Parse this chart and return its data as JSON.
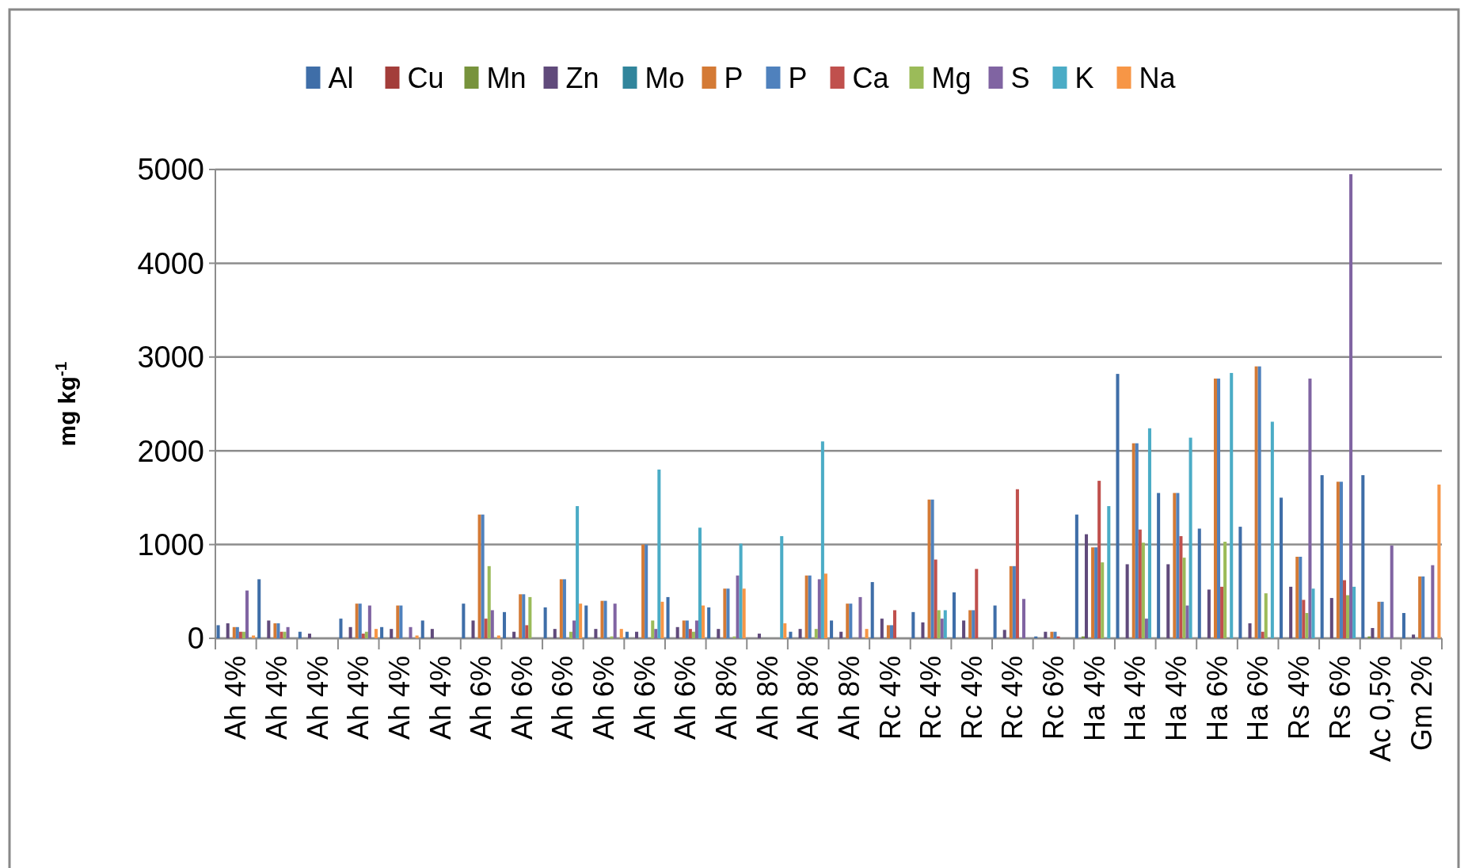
{
  "chart_data": {
    "type": "bar",
    "ylabel": "mg kg$^{-1}$",
    "categories": [
      "Ah 4%",
      "Ah 4%",
      "Ah 4%",
      "Ah 4%",
      "Ah 4%",
      "Ah 4%",
      "Ah 6%",
      "Ah 6%",
      "Ah 6%",
      "Ah 6%",
      "Ah 6%",
      "Ah 6%",
      "Ah 8%",
      "Ah 8%",
      "Ah 8%",
      "Ah 8%",
      "Rc 4%",
      "Rc 4%",
      "Rc 4%",
      "Rc 4%",
      "Rc 6%",
      "Ha 4%",
      "Ha 4%",
      "Ha 4%",
      "Ha 6%",
      "Ha 6%",
      "Rs 4%",
      "Rs 6%",
      "Ac 0,5%",
      "Gm 2%"
    ],
    "series": [
      {
        "name": "Al",
        "color": "#3f6ea8",
        "values": [
          140,
          630,
          70,
          210,
          120,
          190,
          370,
          280,
          330,
          350,
          70,
          440,
          330,
          0,
          70,
          190,
          600,
          280,
          490,
          350,
          20,
          1320,
          2820,
          1550,
          1170,
          1190,
          1500,
          1740,
          1740,
          270
        ]
      },
      {
        "name": "Cu",
        "color": "#a33d3a",
        "values": [
          0,
          0,
          0,
          0,
          0,
          0,
          0,
          0,
          0,
          0,
          0,
          0,
          0,
          0,
          0,
          0,
          0,
          0,
          0,
          0,
          0,
          0,
          0,
          0,
          0,
          0,
          0,
          0,
          0,
          0
        ]
      },
      {
        "name": "Mn",
        "color": "#77933c",
        "values": [
          0,
          0,
          0,
          0,
          0,
          0,
          0,
          0,
          0,
          0,
          0,
          0,
          0,
          0,
          0,
          0,
          0,
          0,
          0,
          0,
          0,
          20,
          0,
          0,
          0,
          0,
          0,
          0,
          20,
          0
        ]
      },
      {
        "name": "Zn",
        "color": "#604a7b",
        "values": [
          160,
          190,
          50,
          120,
          100,
          100,
          190,
          70,
          100,
          100,
          70,
          120,
          100,
          50,
          100,
          70,
          210,
          170,
          190,
          90,
          70,
          1110,
          790,
          790,
          520,
          160,
          550,
          430,
          110,
          40
        ]
      },
      {
        "name": "Mo",
        "color": "#31859c",
        "values": [
          0,
          0,
          0,
          0,
          0,
          0,
          0,
          0,
          0,
          0,
          0,
          0,
          0,
          0,
          0,
          0,
          0,
          0,
          0,
          0,
          0,
          0,
          0,
          0,
          0,
          0,
          0,
          0,
          0,
          0
        ]
      },
      {
        "name": "P",
        "color": "#d47a35",
        "values": [
          120,
          160,
          0,
          370,
          350,
          0,
          1320,
          470,
          630,
          400,
          1000,
          190,
          530,
          0,
          670,
          370,
          140,
          1480,
          300,
          770,
          70,
          970,
          2080,
          1550,
          2770,
          2900,
          870,
          1670,
          390,
          660
        ]
      },
      {
        "name": "P",
        "color": "#4f81bd",
        "values": [
          120,
          160,
          0,
          370,
          350,
          0,
          1320,
          470,
          630,
          400,
          1000,
          190,
          530,
          0,
          670,
          370,
          140,
          1480,
          300,
          770,
          70,
          970,
          2080,
          1550,
          2770,
          2900,
          870,
          1670,
          390,
          660
        ]
      },
      {
        "name": "Ca",
        "color": "#c0504d",
        "values": [
          70,
          70,
          0,
          50,
          0,
          0,
          210,
          140,
          0,
          0,
          0,
          100,
          0,
          0,
          0,
          0,
          300,
          840,
          740,
          1590,
          20,
          1680,
          1160,
          1090,
          550,
          70,
          410,
          620,
          0,
          0
        ]
      },
      {
        "name": "Mg",
        "color": "#9bbb59",
        "values": [
          70,
          70,
          0,
          70,
          0,
          0,
          770,
          440,
          70,
          20,
          190,
          70,
          20,
          0,
          100,
          0,
          0,
          300,
          0,
          0,
          0,
          810,
          1020,
          860,
          1030,
          480,
          270,
          460,
          0,
          0
        ]
      },
      {
        "name": "S",
        "color": "#8064a2",
        "values": [
          510,
          120,
          0,
          350,
          120,
          0,
          300,
          0,
          190,
          370,
          100,
          190,
          670,
          0,
          630,
          440,
          0,
          210,
          0,
          420,
          0,
          0,
          210,
          350,
          0,
          0,
          2770,
          4950,
          990,
          780
        ]
      },
      {
        "name": "K",
        "color": "#4bacc6",
        "values": [
          0,
          0,
          0,
          0,
          0,
          0,
          0,
          0,
          1410,
          0,
          1800,
          1180,
          1010,
          1090,
          2100,
          0,
          0,
          300,
          0,
          0,
          0,
          1410,
          2240,
          2140,
          2830,
          2310,
          530,
          550,
          0,
          0
        ]
      },
      {
        "name": "Na",
        "color": "#f79646",
        "values": [
          30,
          0,
          0,
          100,
          30,
          0,
          30,
          0,
          370,
          100,
          390,
          350,
          530,
          160,
          690,
          100,
          0,
          0,
          0,
          0,
          0,
          0,
          0,
          0,
          0,
          0,
          0,
          0,
          0,
          1640
        ]
      }
    ],
    "ylim": [
      0,
      5000
    ],
    "yticks": [
      0,
      1000,
      2000,
      3000,
      4000,
      5000
    ],
    "grid": "y",
    "legend": "top"
  }
}
